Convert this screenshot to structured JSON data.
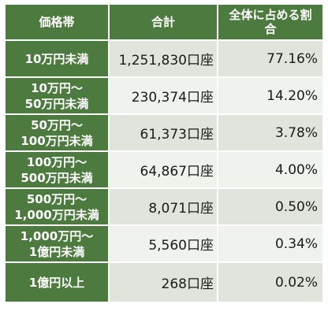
{
  "table": {
    "headers": {
      "range": "価格帯",
      "total": "合計",
      "share_line1": "全体に占める割",
      "share_line2": "合"
    },
    "rows": [
      {
        "range_line1": "10万円未満",
        "range_line2": "",
        "accounts": "1,251,830口座",
        "share": "77.16%"
      },
      {
        "range_line1": "10万円～",
        "range_line2": "50万円未満",
        "accounts": "230,374口座",
        "share": "14.20%"
      },
      {
        "range_line1": "50万円～",
        "range_line2": "100万円未満",
        "accounts": "61,373口座",
        "share": "3.78%"
      },
      {
        "range_line1": "100万円～",
        "range_line2": "500万円未満",
        "accounts": "64,867口座",
        "share": "4.00%"
      },
      {
        "range_line1": "500万円～",
        "range_line2": "1,000万円未満",
        "accounts": "8,071口座",
        "share": "0.50%"
      },
      {
        "range_line1": "1,000万円～",
        "range_line2": "1億円未満",
        "accounts": "5,560口座",
        "share": "0.34%"
      },
      {
        "range_line1": "1億円以上",
        "range_line2": "",
        "accounts": "268口座",
        "share": "0.02%"
      }
    ],
    "colors": {
      "header_bg": "#4d7a3f",
      "row_odd_bg": "#dfe5dc",
      "row_even_bg": "#eff2ed",
      "header_text": "#ffffff"
    }
  }
}
